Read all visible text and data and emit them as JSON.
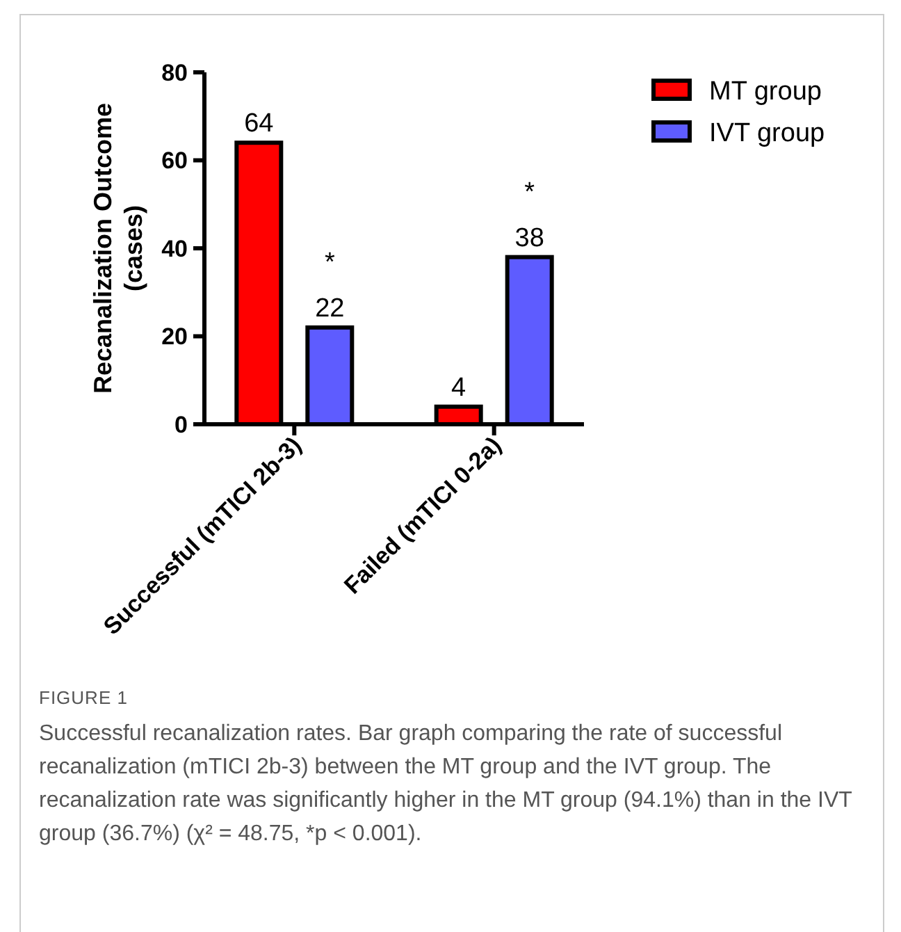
{
  "chart_data": {
    "type": "bar",
    "ylabel": "Recanalization Outcome (cases)",
    "categories": [
      "Successful (mTICI 2b-3)",
      "Failed (mTICI 0-2a)"
    ],
    "series": [
      {
        "name": "MT group",
        "color": "#ff0000",
        "values": [
          64,
          4
        ]
      },
      {
        "name": "IVT group",
        "color": "#5e5cff",
        "values": [
          22,
          38
        ]
      }
    ],
    "ylim": [
      0,
      80
    ],
    "yticks": [
      0,
      20,
      40,
      60,
      80
    ],
    "data_labels": true,
    "legend": "top right",
    "grid": false,
    "annotations": [
      "*",
      "*",
      "FIGURE 1",
      "Successful recanalization rates. Bar graph comparing the rate of successful recanalization (mTICI 2b-3) between the MT group and the IVT group. The recanalization rate was significantly higher in the MT group (94.1%) than in the IVT group (36.7%) (χ² = 48.75, *p < 0.001)."
    ]
  }
}
